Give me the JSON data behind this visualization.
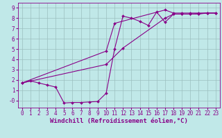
{
  "background_color": "#c0e8e8",
  "grid_color": "#9bbfbf",
  "line_color": "#880088",
  "marker": "D",
  "markersize": 2.0,
  "linewidth": 0.8,
  "xlabel": "Windchill (Refroidissement éolien,°C)",
  "xlabel_fontsize": 6.5,
  "tick_fontsize": 5.5,
  "xlim": [
    -0.5,
    23.5
  ],
  "ylim": [
    -0.7,
    9.5
  ],
  "yticks": [
    0,
    1,
    2,
    3,
    4,
    5,
    6,
    7,
    8,
    9
  ],
  "ytick_labels": [
    "-0",
    "1",
    "2",
    "3",
    "4",
    "5",
    "6",
    "7",
    "8",
    "9"
  ],
  "xticks": [
    0,
    1,
    2,
    3,
    4,
    5,
    6,
    7,
    8,
    9,
    10,
    11,
    12,
    13,
    14,
    15,
    16,
    17,
    18,
    19,
    20,
    21,
    22,
    23
  ],
  "lines": [
    {
      "x": [
        0,
        1,
        2,
        3,
        4,
        5,
        6,
        7,
        8,
        9,
        10,
        11,
        12,
        13,
        14,
        15,
        16,
        17,
        18,
        19,
        20,
        21,
        22,
        23
      ],
      "y": [
        1.7,
        1.9,
        1.7,
        1.5,
        1.3,
        -0.25,
        -0.2,
        -0.2,
        -0.15,
        -0.1,
        0.7,
        5.0,
        8.2,
        8.0,
        7.7,
        7.3,
        8.6,
        7.6,
        8.4,
        8.4,
        8.4,
        8.45,
        8.5,
        8.5
      ]
    },
    {
      "x": [
        0,
        10,
        11,
        17,
        18,
        19,
        20,
        21,
        22,
        23
      ],
      "y": [
        1.7,
        4.8,
        7.5,
        8.8,
        8.5,
        8.5,
        8.5,
        8.5,
        8.5,
        8.5
      ]
    },
    {
      "x": [
        0,
        10,
        12,
        17,
        18,
        19,
        20,
        21,
        22,
        23
      ],
      "y": [
        1.7,
        3.5,
        5.1,
        8.0,
        8.4,
        8.4,
        8.4,
        8.4,
        8.5,
        8.5
      ]
    }
  ]
}
